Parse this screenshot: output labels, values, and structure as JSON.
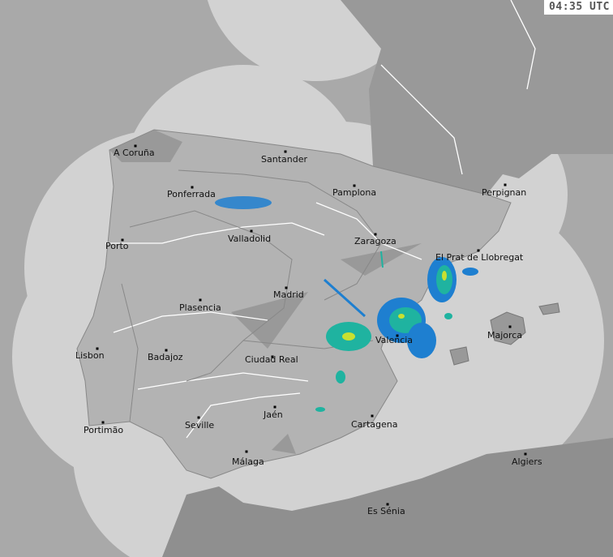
{
  "timestamp": "04:35 UTC",
  "colors": {
    "sea_outside_coverage": "#a9a9a9",
    "coverage": "#d2d2d2",
    "land_coverage": "#b3b3b3",
    "land_outside": "#8f8f8f",
    "radar_light": "#1e7fd0",
    "radar_mid": "#1fb3a0",
    "radar_high": "#c8e030"
  },
  "cities": [
    {
      "name": "A Coruña",
      "dot": [
        167,
        180
      ],
      "label": [
        140,
        192
      ]
    },
    {
      "name": "Santander",
      "dot": [
        352,
        187
      ],
      "label": [
        322,
        200
      ]
    },
    {
      "name": "Pamplona",
      "dot": [
        437,
        229
      ],
      "label": [
        410,
        241
      ]
    },
    {
      "name": "Perpignan",
      "dot": [
        623,
        228
      ],
      "label": [
        594,
        241
      ]
    },
    {
      "name": "Ponferrada",
      "dot": [
        237,
        231
      ],
      "label": [
        206,
        243
      ]
    },
    {
      "name": "Valladolid",
      "dot": [
        310,
        285
      ],
      "label": [
        281,
        298
      ]
    },
    {
      "name": "Zaragoza",
      "dot": [
        463,
        289
      ],
      "label": [
        437,
        301
      ]
    },
    {
      "name": "Porto",
      "dot": [
        151,
        296
      ],
      "label": [
        130,
        307
      ]
    },
    {
      "name": "El Prat de Llobregat",
      "dot": [
        590,
        309
      ],
      "label": [
        537,
        321
      ]
    },
    {
      "name": "Madrid",
      "dot": [
        353,
        355
      ],
      "label": [
        337,
        367
      ]
    },
    {
      "name": "Plasencia",
      "dot": [
        247,
        370
      ],
      "label": [
        221,
        383
      ]
    },
    {
      "name": "Majorca",
      "dot": [
        629,
        403
      ],
      "label": [
        601,
        417
      ]
    },
    {
      "name": "Valencia",
      "dot": [
        490,
        414
      ],
      "label": [
        463,
        423
      ]
    },
    {
      "name": "Lisbon",
      "dot": [
        120,
        430
      ],
      "label": [
        93,
        442
      ]
    },
    {
      "name": "Badajoz",
      "dot": [
        205,
        432
      ],
      "label": [
        182,
        444
      ]
    },
    {
      "name": "Ciudad Real",
      "dot": [
        336,
        440
      ],
      "label": [
        302,
        447
      ]
    },
    {
      "name": "Jaén",
      "dot": [
        339,
        502
      ],
      "label": [
        325,
        515
      ]
    },
    {
      "name": "Cartagena",
      "dot": [
        459,
        513
      ],
      "label": [
        433,
        527
      ]
    },
    {
      "name": "Seville",
      "dot": [
        245,
        515
      ],
      "label": [
        228,
        528
      ]
    },
    {
      "name": "Portimão",
      "dot": [
        127,
        521
      ],
      "label": [
        103,
        534
      ]
    },
    {
      "name": "Málaga",
      "dot": [
        304,
        557
      ],
      "label": [
        286,
        573
      ]
    },
    {
      "name": "Algiers",
      "dot": [
        648,
        560
      ],
      "label": [
        631,
        573
      ]
    },
    {
      "name": "Es Sénia",
      "dot": [
        478,
        622
      ],
      "label": [
        453,
        634
      ]
    }
  ]
}
